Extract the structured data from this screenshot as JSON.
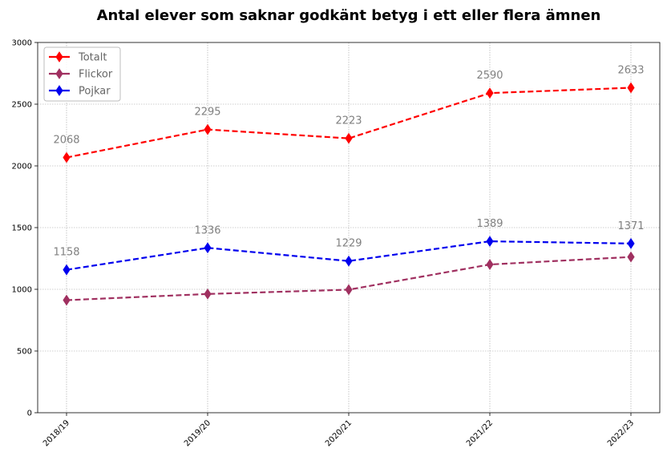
{
  "chart_data": {
    "type": "line",
    "title": "Antal elever som saknar godkänt betyg i ett eller flera ämnen",
    "xlabel": "",
    "ylabel": "",
    "categories": [
      "2018/19",
      "2019/20",
      "2020/21",
      "2021/22",
      "2022/23"
    ],
    "ylim": [
      0,
      3000
    ],
    "yticks": [
      0,
      500,
      1000,
      1500,
      2000,
      2500,
      3000
    ],
    "grid": true,
    "legend_position": "top-left",
    "series": [
      {
        "name": "Totalt",
        "color": "#ff0000",
        "values": [
          2068,
          2295,
          2223,
          2590,
          2633
        ],
        "labels": [
          "2068",
          "2295",
          "2223",
          "2590",
          "2633"
        ],
        "show_labels": true
      },
      {
        "name": "Flickor",
        "color": "#a03060",
        "values": [
          912,
          962,
          997,
          1201,
          1262
        ],
        "labels": [],
        "show_labels": false
      },
      {
        "name": "Pojkar",
        "color": "#0000ee",
        "values": [
          1158,
          1336,
          1229,
          1389,
          1371
        ],
        "labels": [
          "1158",
          "1336",
          "1229",
          "1389",
          "1371"
        ],
        "show_labels": true
      }
    ]
  }
}
